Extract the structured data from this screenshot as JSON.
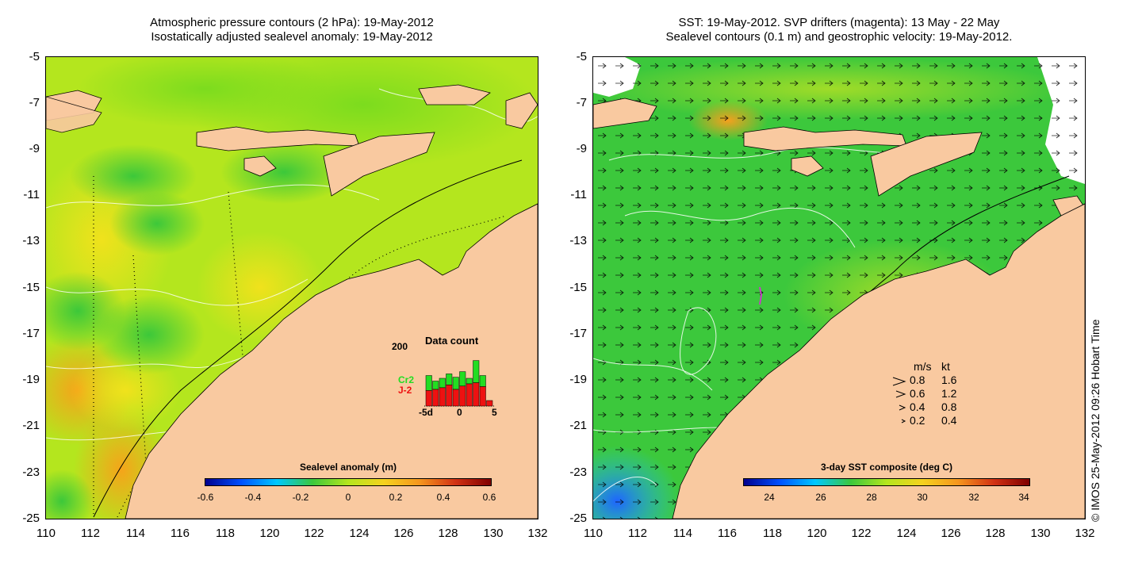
{
  "left_panel": {
    "title_line1": "Atmospheric pressure contours (2 hPa): 19-May-2012",
    "title_line2": "Isostatically adjusted sealevel anomaly: 19-May-2012",
    "colorbar": {
      "title": "Sealevel anomaly (m)",
      "ticks": [
        "-0.6",
        "-0.4",
        "-0.2",
        "0",
        "0.2",
        "0.4",
        "0.6"
      ]
    },
    "data_count": {
      "title": "Data count",
      "ymax_label": "200",
      "series1": "Cr2",
      "series2": "J-2",
      "series1_color": "#22dd22",
      "series2_color": "#ee1111",
      "xtick_start": "-5d",
      "xtick_mid": "0",
      "xtick_end": "5",
      "bars": [
        {
          "total": 0.55,
          "lower": 0.28
        },
        {
          "total": 0.45,
          "lower": 0.3
        },
        {
          "total": 0.5,
          "lower": 0.33
        },
        {
          "total": 0.58,
          "lower": 0.38
        },
        {
          "total": 0.52,
          "lower": 0.3
        },
        {
          "total": 0.62,
          "lower": 0.36
        },
        {
          "total": 0.5,
          "lower": 0.4
        },
        {
          "total": 0.82,
          "lower": 0.42
        },
        {
          "total": 0.55,
          "lower": 0.35
        },
        {
          "total": 0.1,
          "lower": 0.1
        }
      ]
    }
  },
  "right_panel": {
    "title_line1": "SST: 19-May-2012. SVP drifters (magenta): 13 May - 22 May",
    "title_line2": "Sealevel contours (0.1 m) and geostrophic velocity: 19-May-2012.",
    "colorbar": {
      "title": "3-day SST composite (deg C)",
      "ticks": [
        "24",
        "26",
        "28",
        "30",
        "32",
        "34"
      ]
    },
    "velocity_legend": {
      "header_ms": "m/s",
      "header_kt": "kt",
      "rows": [
        {
          "ms": "0.8",
          "kt": "1.6"
        },
        {
          "ms": "0.6",
          "kt": "1.2"
        },
        {
          "ms": "0.4",
          "kt": "0.8"
        },
        {
          "ms": "0.2",
          "kt": "0.4"
        }
      ]
    }
  },
  "axes": {
    "y_ticks": [
      "-5",
      "-7",
      "-9",
      "-11",
      "-13",
      "-15",
      "-17",
      "-19",
      "-21",
      "-23",
      "-25"
    ],
    "x_ticks": [
      "110",
      "112",
      "114",
      "116",
      "118",
      "120",
      "122",
      "124",
      "126",
      "128",
      "130",
      "132"
    ]
  },
  "copyright": "© IMOS 25-May-2012 09:26 Hobart Time",
  "colors": {
    "land": "#f9c9a0",
    "ssl_base": "#b4e61e",
    "sst_base": "#3cc83c"
  }
}
